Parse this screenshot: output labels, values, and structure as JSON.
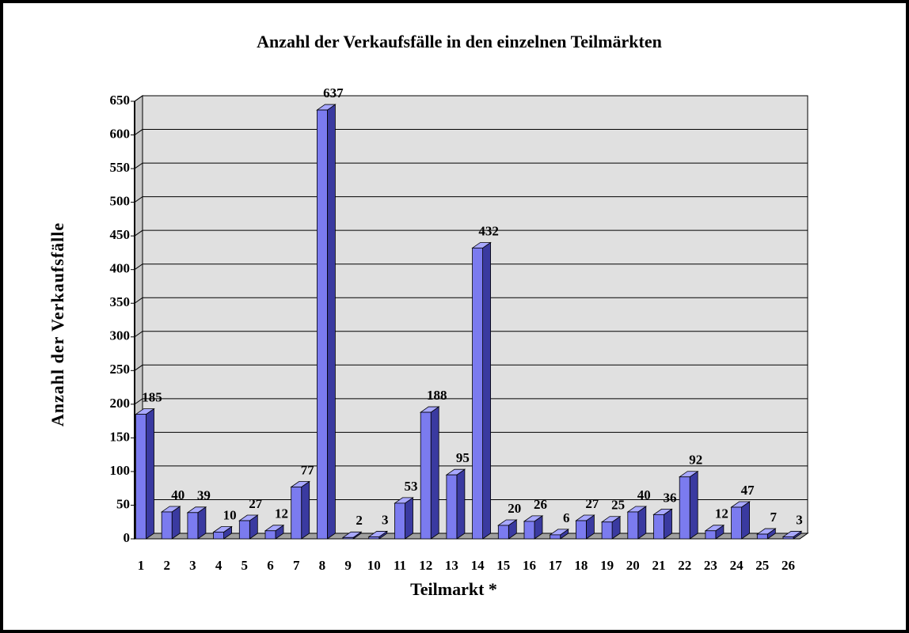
{
  "chart_data": {
    "type": "bar3d",
    "title": "Anzahl der Verkaufsfälle in den einzelnen Teilmärkten",
    "y_label": "Anzahl der Verkaufsfälle",
    "x_label": "Teilmarkt *",
    "categories": [
      "1",
      "2",
      "3",
      "4",
      "5",
      "6",
      "7",
      "8",
      "9",
      "10",
      "11",
      "12",
      "13",
      "14",
      "15",
      "16",
      "17",
      "18",
      "19",
      "20",
      "21",
      "22",
      "23",
      "24",
      "25",
      "26"
    ],
    "values": [
      185,
      40,
      39,
      10,
      27,
      12,
      77,
      637,
      2,
      3,
      53,
      188,
      95,
      432,
      20,
      26,
      6,
      27,
      25,
      40,
      36,
      92,
      12,
      47,
      7,
      3
    ],
    "color": "#7b7bef",
    "ylim": [
      0,
      650
    ],
    "yticks": [
      0,
      50,
      100,
      150,
      200,
      250,
      300,
      350,
      400,
      450,
      500,
      550,
      600,
      650
    ],
    "grid": true
  }
}
